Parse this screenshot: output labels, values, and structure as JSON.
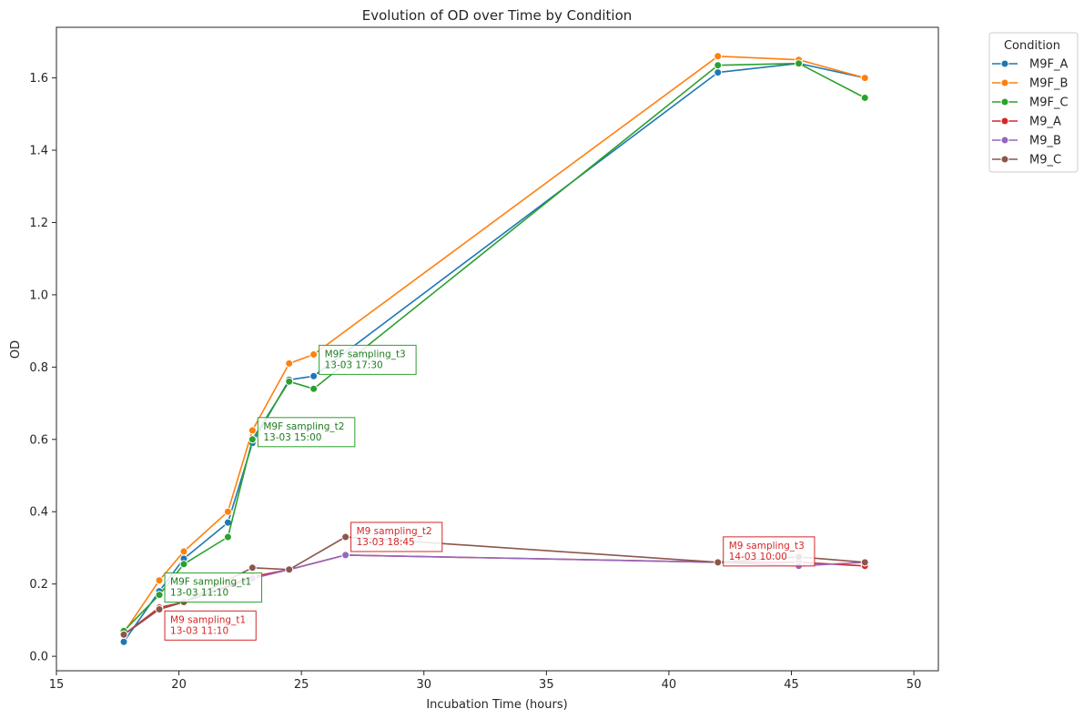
{
  "chart_data": {
    "type": "line",
    "title": "Evolution of OD over Time by Condition",
    "xlabel": "Incubation Time (hours)",
    "ylabel": "OD",
    "xlim": [
      15,
      51
    ],
    "ylim": [
      -0.04,
      1.74
    ],
    "xticks": [
      15,
      20,
      25,
      30,
      35,
      40,
      45,
      50
    ],
    "yticks": [
      0.0,
      0.2,
      0.4,
      0.6,
      0.8,
      1.0,
      1.2,
      1.4,
      1.6
    ],
    "grid": false,
    "legend": {
      "title": "Condition",
      "placement": "outside-top-right"
    },
    "series": [
      {
        "name": "M9F_A",
        "color": "#1f77b4",
        "x": [
          17.75,
          19.2,
          20.2,
          22.0,
          23.0,
          24.5,
          25.5,
          42.0,
          45.3,
          48.0
        ],
        "y": [
          0.04,
          0.18,
          0.27,
          0.37,
          0.59,
          0.765,
          0.775,
          1.615,
          1.64,
          1.6
        ]
      },
      {
        "name": "M9F_B",
        "color": "#ff7f0e",
        "x": [
          17.75,
          19.2,
          20.2,
          22.0,
          23.0,
          24.5,
          25.5,
          42.0,
          45.3,
          48.0
        ],
        "y": [
          0.065,
          0.21,
          0.29,
          0.4,
          0.625,
          0.81,
          0.835,
          1.66,
          1.65,
          1.6
        ]
      },
      {
        "name": "M9F_C",
        "color": "#2ca02c",
        "x": [
          17.75,
          19.2,
          20.2,
          22.0,
          23.0,
          24.5,
          25.5,
          42.0,
          45.3,
          48.0
        ],
        "y": [
          0.07,
          0.17,
          0.255,
          0.33,
          0.6,
          0.76,
          0.74,
          1.635,
          1.64,
          1.545
        ]
      },
      {
        "name": "M9_A",
        "color": "#d62728",
        "x": [
          17.75,
          19.2,
          20.2,
          23.0,
          24.5,
          26.8,
          42.0,
          45.3,
          48.0
        ],
        "y": [
          0.06,
          0.135,
          0.15,
          0.22,
          0.24,
          0.28,
          0.26,
          0.26,
          0.25
        ]
      },
      {
        "name": "M9_B",
        "color": "#9467bd",
        "x": [
          17.75,
          19.2,
          20.2,
          23.0,
          24.5,
          26.8,
          42.0,
          45.3,
          48.0
        ],
        "y": [
          0.06,
          0.13,
          0.15,
          0.215,
          0.24,
          0.28,
          0.26,
          0.25,
          0.26
        ]
      },
      {
        "name": "M9_C",
        "color": "#8c564b",
        "x": [
          17.75,
          19.2,
          20.2,
          23.0,
          24.5,
          26.8,
          42.0,
          45.3,
          48.0
        ],
        "y": [
          0.06,
          0.13,
          0.15,
          0.245,
          0.24,
          0.33,
          0.26,
          0.275,
          0.26
        ]
      }
    ],
    "annotations": [
      {
        "line1": "M9F sampling_t1",
        "line2": "13-03 11:10",
        "x": 19.2,
        "y": 0.17,
        "color": "#2ca02c",
        "text_color": "#1e7d1e"
      },
      {
        "line1": "M9F sampling_t2",
        "line2": "13-03 15:00",
        "x": 23.0,
        "y": 0.6,
        "color": "#2ca02c",
        "text_color": "#1e7d1e"
      },
      {
        "line1": "M9F sampling_t3",
        "line2": "13-03 17:30",
        "x": 25.5,
        "y": 0.8,
        "color": "#2ca02c",
        "text_color": "#1e7d1e"
      },
      {
        "line1": "M9 sampling_t1",
        "line2": "13-03 11:10",
        "x": 19.2,
        "y": 0.065,
        "color": "#d62728",
        "text_color": "#d62728"
      },
      {
        "line1": "M9 sampling_t2",
        "line2": "13-03 18:45",
        "x": 26.8,
        "y": 0.31,
        "color": "#d62728",
        "text_color": "#d62728"
      },
      {
        "line1": "M9 sampling_t3",
        "line2": "14-03 10:00",
        "x": 42.0,
        "y": 0.27,
        "color": "#d62728",
        "text_color": "#d62728"
      }
    ]
  }
}
